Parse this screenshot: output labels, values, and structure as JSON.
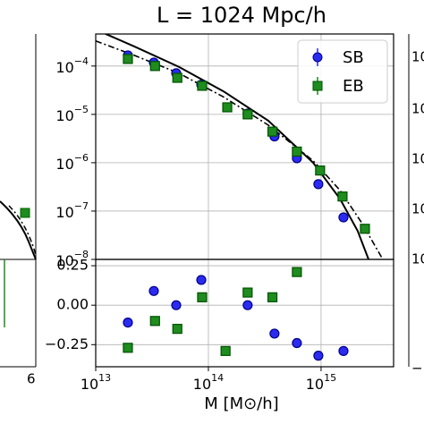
{
  "chart_data": [
    {
      "type": "scatter",
      "title": "L = 1024 Mpc/h",
      "log_x": true,
      "log_y": true,
      "grid": true,
      "legend": "upper right",
      "xlim": [
        10000000000000.0,
        4400000000000000.0
      ],
      "ylim": [
        1e-08,
        0.00046
      ],
      "yticks": [
        {
          "value": 0.0001,
          "label": "10^−4"
        },
        {
          "value": 1e-05,
          "label": "10^−5"
        },
        {
          "value": 1e-06,
          "label": "10^−6"
        },
        {
          "value": 1e-07,
          "label": "10^−7"
        },
        {
          "value": 1e-08,
          "label": "10^−8"
        }
      ],
      "series": [
        {
          "name": "SB",
          "color": "#2b2bf0",
          "marker": "circle",
          "x": [
            19300000000000.0,
            32800000000000.0,
            51800000000000.0,
            86500000000000.0,
            223000000000000.0,
            386000000000000.0,
            610000000000000.0,
            946000000000000.0,
            1580000000000000.0
          ],
          "values": [
            0.000166,
            0.000118,
            7.1e-05,
            4.1e-05,
            1.04e-05,
            3.5e-06,
            1.24e-06,
            3.6e-07,
            7.4e-08
          ]
        },
        {
          "name": "EB",
          "color": "#1e8c1e",
          "marker": "square",
          "x": [
            19300000000000.0,
            33600000000000.0,
            53000000000000.0,
            88000000000000.0,
            147000000000000.0,
            223000000000000.0,
            370000000000000.0,
            610000000000000.0,
            980000000000000.0,
            1550000000000000.0,
            2450000000000000.0
          ],
          "values": [
            0.00014,
            0.0001,
            5.7e-05,
            3.9e-05,
            1.4e-05,
            1e-05,
            4.4e-06,
            1.7e-06,
            6.9e-07,
            2e-07,
            4.3e-08
          ]
        }
      ],
      "curves": [
        {
          "style": "solid",
          "x": [
            12200000000000.0,
            21900000000000.0,
            54700000000000.0,
            136000000000000.0,
            340000000000000.0,
            850000000000000.0,
            1470000000000000.0,
            2110000000000000.0,
            2640000000000000.0
          ],
          "values": [
            0.000464,
            0.000255,
            9.6e-05,
            3e-05,
            7.4e-06,
            1e-06,
            1.8e-07,
            3.9e-08,
            1e-08
          ]
        },
        {
          "style": "dashdot",
          "x": [
            10000000000000.0,
            21900000000000.0,
            54700000000000.0,
            136000000000000.0,
            340000000000000.0,
            850000000000000.0,
            1470000000000000.0,
            2320000000000000.0,
            3530000000000000.0
          ],
          "values": [
            0.00033,
            0.000167,
            7.1e-05,
            2.3e-05,
            6e-06,
            1.1e-06,
            2.7e-07,
            5.5e-08,
            1e-08
          ]
        }
      ]
    },
    {
      "type": "scatter",
      "xlabel": "M [M⊙/h]",
      "log_x": true,
      "grid": true,
      "xlim": [
        10000000000000.0,
        4400000000000000.0
      ],
      "ylim": [
        -0.39,
        0.29
      ],
      "xticks": [
        {
          "value": 10000000000000.0,
          "label": "10^13"
        },
        {
          "value": 100000000000000.0,
          "label": "10^14"
        },
        {
          "value": 1000000000000000.0,
          "label": "10^15"
        }
      ],
      "yticks": [
        0.25,
        {
          "value": 0,
          "label": "0.00"
        },
        {
          "value": -0.25,
          "label": "−0.25"
        }
      ],
      "series": [
        {
          "color": "#2b2bf0",
          "marker": "circle",
          "x": [
            19300000000000.0,
            32800000000000.0,
            51800000000000.0,
            86500000000000.0,
            223000000000000.0,
            386000000000000.0,
            610000000000000.0,
            946000000000000.0,
            1580000000000000.0
          ],
          "values": [
            -0.11,
            0.09,
            0,
            0.16,
            0,
            -0.18,
            -0.24,
            -0.32,
            -0.29
          ]
        },
        {
          "color": "#1e8c1e",
          "marker": "square",
          "x": [
            19300000000000.0,
            33600000000000.0,
            53000000000000.0,
            88000000000000.0,
            142000000000000.0,
            223000000000000.0,
            370000000000000.0,
            610000000000000.0
          ],
          "values": [
            -0.27,
            -0.1,
            -0.15,
            0.05,
            -0.29,
            0.08,
            0.05,
            0.21
          ]
        }
      ]
    }
  ],
  "side_fragments": {
    "left": "6",
    "right": [
      "10",
      "10",
      "10",
      "10",
      "10"
    ],
    "right_bottom": "−"
  }
}
